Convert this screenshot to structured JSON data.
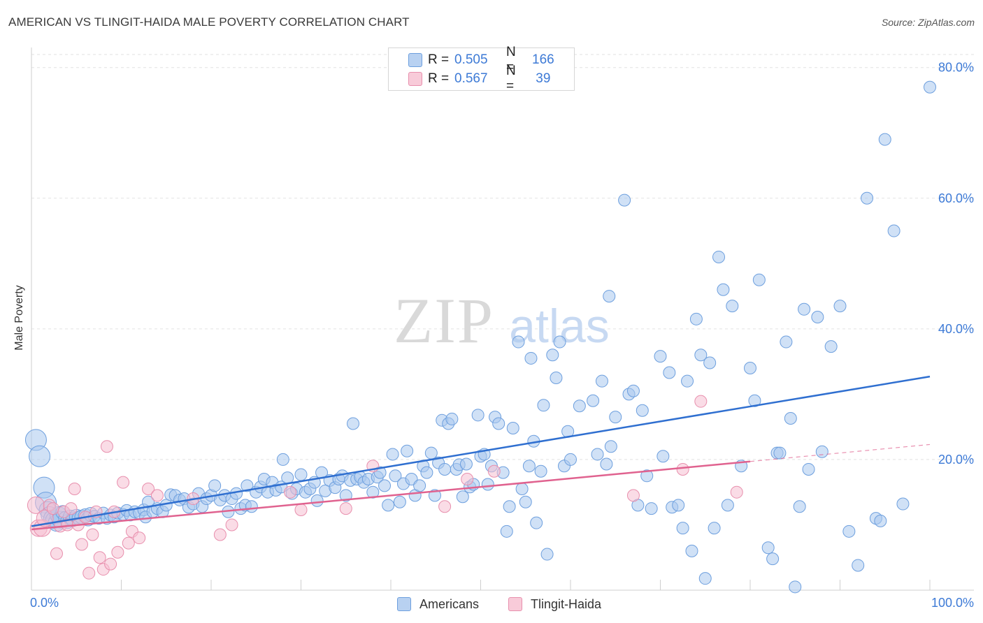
{
  "title": "AMERICAN VS TLINGIT-HAIDA MALE POVERTY CORRELATION CHART",
  "source": "Source: ZipAtlas.com",
  "watermark": {
    "zip": "ZIP",
    "atlas": "atlas"
  },
  "legend_top": {
    "series": [
      {
        "r_label": "R =",
        "r_value": "0.505",
        "n_label": "N =",
        "n_value": "166"
      },
      {
        "r_label": "R =",
        "r_value": "0.567",
        "n_label": "N =",
        "n_value": " 39"
      }
    ]
  },
  "legend_bottom": {
    "americans": "Americans",
    "tlingit": "Tlingit-Haida"
  },
  "colors": {
    "blue_fill": "#a9c8ef",
    "blue_stroke": "#6d9fde",
    "blue_line": "#2f6fd0",
    "pink_fill": "#f6bfd1",
    "pink_stroke": "#e88fad",
    "pink_line": "#e0628f",
    "axis_text": "#3d7ad6",
    "grid": "#e2e2e2"
  },
  "chart_data": {
    "type": "scatter",
    "title": "AMERICAN VS TLINGIT-HAIDA MALE POVERTY CORRELATION CHART",
    "xlabel": "",
    "ylabel": "Male Poverty",
    "xlim": [
      0,
      100
    ],
    "ylim": [
      0,
      82
    ],
    "x_tick_labels": [
      "0.0%",
      "100.0%"
    ],
    "y_ticks": [
      20,
      40,
      60,
      80
    ],
    "y_tick_labels": [
      "20.0%",
      "40.0%",
      "60.0%",
      "80.0%"
    ],
    "x_minor_ticks": [
      10,
      20,
      30,
      40,
      50,
      60,
      70,
      80,
      90,
      100
    ],
    "grid": true,
    "legend_position": "top-center",
    "series": [
      {
        "name": "Americans",
        "r": 0.505,
        "n": 166,
        "trend": {
          "x0": 0,
          "y0": 9.8,
          "x1": 100,
          "y1": 32.7
        },
        "points": [
          [
            0.5,
            23.0
          ],
          [
            0.9,
            20.5
          ],
          [
            1.4,
            15.7
          ],
          [
            1.6,
            13.4
          ],
          [
            1.8,
            12.3
          ],
          [
            2.0,
            11.5
          ],
          [
            2.3,
            11.0
          ],
          [
            2.5,
            10.7
          ],
          [
            2.8,
            10.3
          ],
          [
            3.0,
            11.5
          ],
          [
            3.2,
            10.8
          ],
          [
            3.5,
            11.9
          ],
          [
            3.8,
            11.0
          ],
          [
            4.0,
            10.5
          ],
          [
            4.3,
            11.2
          ],
          [
            4.6,
            10.8
          ],
          [
            5.0,
            11.3
          ],
          [
            5.3,
            11.0
          ],
          [
            5.6,
            11.2
          ],
          [
            6.0,
            11.4
          ],
          [
            6.3,
            10.9
          ],
          [
            6.6,
            11.6
          ],
          [
            7.0,
            11.3
          ],
          [
            7.5,
            11.0
          ],
          [
            8.0,
            11.8
          ],
          [
            8.4,
            11.0
          ],
          [
            8.8,
            11.5
          ],
          [
            9.2,
            11.2
          ],
          [
            9.6,
            11.8
          ],
          [
            10.2,
            11.6
          ],
          [
            10.6,
            12.2
          ],
          [
            11.0,
            11.5
          ],
          [
            11.5,
            12.0
          ],
          [
            12.0,
            11.8
          ],
          [
            12.5,
            12.3
          ],
          [
            12.7,
            11.2
          ],
          [
            13.0,
            13.5
          ],
          [
            13.5,
            12.0
          ],
          [
            14.0,
            12.5
          ],
          [
            14.6,
            12.0
          ],
          [
            15.0,
            13.0
          ],
          [
            15.5,
            14.6
          ],
          [
            16.0,
            14.5
          ],
          [
            16.5,
            13.8
          ],
          [
            17.0,
            14.0
          ],
          [
            17.5,
            12.7
          ],
          [
            18.0,
            13.2
          ],
          [
            18.6,
            14.8
          ],
          [
            19.0,
            12.8
          ],
          [
            19.5,
            14.0
          ],
          [
            20.0,
            14.5
          ],
          [
            20.4,
            16.0
          ],
          [
            21.0,
            13.8
          ],
          [
            21.5,
            14.5
          ],
          [
            21.9,
            12.0
          ],
          [
            22.3,
            14.0
          ],
          [
            22.8,
            14.8
          ],
          [
            23.3,
            12.5
          ],
          [
            23.8,
            13.0
          ],
          [
            24.0,
            16.0
          ],
          [
            24.5,
            12.8
          ],
          [
            25.0,
            15.0
          ],
          [
            25.5,
            15.8
          ],
          [
            25.9,
            17.0
          ],
          [
            26.3,
            15.0
          ],
          [
            26.8,
            16.5
          ],
          [
            27.2,
            15.3
          ],
          [
            27.8,
            15.8
          ],
          [
            28.0,
            20.0
          ],
          [
            28.5,
            17.2
          ],
          [
            29.0,
            14.8
          ],
          [
            29.5,
            15.5
          ],
          [
            30.0,
            17.7
          ],
          [
            30.5,
            15.0
          ],
          [
            31.0,
            15.5
          ],
          [
            31.5,
            16.5
          ],
          [
            31.8,
            13.7
          ],
          [
            32.3,
            18.0
          ],
          [
            32.7,
            15.2
          ],
          [
            33.2,
            16.8
          ],
          [
            33.8,
            15.7
          ],
          [
            34.2,
            17.0
          ],
          [
            34.6,
            17.5
          ],
          [
            35.0,
            14.5
          ],
          [
            35.5,
            16.8
          ],
          [
            35.8,
            25.5
          ],
          [
            36.2,
            17.0
          ],
          [
            36.6,
            17.3
          ],
          [
            37.0,
            16.5
          ],
          [
            37.5,
            17.0
          ],
          [
            38.0,
            15.0
          ],
          [
            38.5,
            17.3
          ],
          [
            38.8,
            18.0
          ],
          [
            39.3,
            16.0
          ],
          [
            39.7,
            13.0
          ],
          [
            40.2,
            20.8
          ],
          [
            40.5,
            17.5
          ],
          [
            41.0,
            13.5
          ],
          [
            41.4,
            16.3
          ],
          [
            41.8,
            21.3
          ],
          [
            42.3,
            17.0
          ],
          [
            42.7,
            14.5
          ],
          [
            43.2,
            16.0
          ],
          [
            43.6,
            19.0
          ],
          [
            44.0,
            18.0
          ],
          [
            44.5,
            21.0
          ],
          [
            44.9,
            14.5
          ],
          [
            45.3,
            19.5
          ],
          [
            45.7,
            26.0
          ],
          [
            46.0,
            18.5
          ],
          [
            46.4,
            25.5
          ],
          [
            46.8,
            26.2
          ],
          [
            47.3,
            18.5
          ],
          [
            47.6,
            19.2
          ],
          [
            48.0,
            14.3
          ],
          [
            48.4,
            19.3
          ],
          [
            48.8,
            15.8
          ],
          [
            49.2,
            16.2
          ],
          [
            49.7,
            26.8
          ],
          [
            50.0,
            20.5
          ],
          [
            50.4,
            20.8
          ],
          [
            50.8,
            16.2
          ],
          [
            51.2,
            19.0
          ],
          [
            51.6,
            26.5
          ],
          [
            52.0,
            25.5
          ],
          [
            52.5,
            18.0
          ],
          [
            52.9,
            9.0
          ],
          [
            53.2,
            12.8
          ],
          [
            53.6,
            24.8
          ],
          [
            54.2,
            38.0
          ],
          [
            54.6,
            15.5
          ],
          [
            55.0,
            13.5
          ],
          [
            55.4,
            19.0
          ],
          [
            55.6,
            35.5
          ],
          [
            55.9,
            22.8
          ],
          [
            56.2,
            10.3
          ],
          [
            56.7,
            18.2
          ],
          [
            57.0,
            28.3
          ],
          [
            57.4,
            5.5
          ],
          [
            58.0,
            36.0
          ],
          [
            58.4,
            32.5
          ],
          [
            58.8,
            38.0
          ],
          [
            59.3,
            19.0
          ],
          [
            59.7,
            24.3
          ],
          [
            60.0,
            20.0
          ],
          [
            61.0,
            28.2
          ],
          [
            62.5,
            29.0
          ],
          [
            63.0,
            20.8
          ],
          [
            63.5,
            32.0
          ],
          [
            64.0,
            19.3
          ],
          [
            64.3,
            45.0
          ],
          [
            64.5,
            22.0
          ],
          [
            65.0,
            26.5
          ],
          [
            66.0,
            59.7
          ],
          [
            66.5,
            30.0
          ],
          [
            67.0,
            30.5
          ],
          [
            67.5,
            13.0
          ],
          [
            68.0,
            27.5
          ],
          [
            68.5,
            17.5
          ],
          [
            69.0,
            12.5
          ],
          [
            70.0,
            35.8
          ],
          [
            70.3,
            20.5
          ],
          [
            71.0,
            33.3
          ],
          [
            71.3,
            12.7
          ],
          [
            72.0,
            13.0
          ],
          [
            72.5,
            9.5
          ],
          [
            73.0,
            32.0
          ],
          [
            73.5,
            6.0
          ],
          [
            74.0,
            41.5
          ],
          [
            74.5,
            36.0
          ],
          [
            75.0,
            1.8
          ],
          [
            75.5,
            34.8
          ],
          [
            76.0,
            9.5
          ],
          [
            76.5,
            51.0
          ],
          [
            77.0,
            46.0
          ],
          [
            77.5,
            13.0
          ],
          [
            78.0,
            43.5
          ],
          [
            79.0,
            19.0
          ],
          [
            80.0,
            34.0
          ],
          [
            80.5,
            29.0
          ],
          [
            81.0,
            47.5
          ],
          [
            82.0,
            6.5
          ],
          [
            82.5,
            4.8
          ],
          [
            83.0,
            21.0
          ],
          [
            83.3,
            21.0
          ],
          [
            84.0,
            38.0
          ],
          [
            84.5,
            26.3
          ],
          [
            85.0,
            0.5
          ],
          [
            85.5,
            12.8
          ],
          [
            86.0,
            43.0
          ],
          [
            86.5,
            18.5
          ],
          [
            87.5,
            41.8
          ],
          [
            88.0,
            21.2
          ],
          [
            89.0,
            37.3
          ],
          [
            90.0,
            43.5
          ],
          [
            91.0,
            9.0
          ],
          [
            92.0,
            3.8
          ],
          [
            93.0,
            60.0
          ],
          [
            94.0,
            11.0
          ],
          [
            94.5,
            10.6
          ],
          [
            95.0,
            69.0
          ],
          [
            96.0,
            55.0
          ],
          [
            97.0,
            13.2
          ],
          [
            100.0,
            77.0
          ]
        ]
      },
      {
        "name": "Tlingit-Haida",
        "r": 0.567,
        "n": 39,
        "trend": {
          "x0": 0,
          "y0": 9.3,
          "x1": 80,
          "y1": 19.7
        },
        "trend_extension": {
          "x0": 80,
          "y0": 19.7,
          "x1": 100,
          "y1": 22.3
        },
        "points": [
          [
            0.5,
            13.0
          ],
          [
            0.8,
            9.5
          ],
          [
            1.2,
            9.5
          ],
          [
            1.5,
            11.0
          ],
          [
            2.0,
            13.0
          ],
          [
            2.4,
            12.5
          ],
          [
            2.8,
            5.6
          ],
          [
            3.2,
            9.8
          ],
          [
            3.6,
            12.0
          ],
          [
            4.0,
            10.0
          ],
          [
            4.4,
            12.5
          ],
          [
            4.8,
            15.5
          ],
          [
            5.2,
            10.0
          ],
          [
            5.6,
            7.0
          ],
          [
            6.0,
            11.2
          ],
          [
            6.4,
            2.6
          ],
          [
            6.8,
            8.5
          ],
          [
            7.2,
            12.0
          ],
          [
            7.6,
            5.0
          ],
          [
            8.0,
            3.2
          ],
          [
            8.4,
            22.0
          ],
          [
            8.8,
            4.0
          ],
          [
            9.2,
            12.0
          ],
          [
            9.6,
            5.8
          ],
          [
            10.2,
            16.5
          ],
          [
            10.8,
            7.2
          ],
          [
            11.2,
            9.0
          ],
          [
            12.0,
            8.0
          ],
          [
            13.0,
            15.5
          ],
          [
            14.0,
            14.5
          ],
          [
            18.0,
            14.0
          ],
          [
            21.0,
            8.5
          ],
          [
            22.3,
            10.0
          ],
          [
            28.8,
            15.0
          ],
          [
            30.0,
            12.3
          ],
          [
            35.0,
            12.5
          ],
          [
            38.0,
            19.0
          ],
          [
            46.0,
            12.8
          ],
          [
            48.5,
            17.0
          ],
          [
            51.5,
            18.2
          ],
          [
            67.0,
            14.5
          ],
          [
            72.5,
            18.5
          ],
          [
            74.5,
            28.9
          ],
          [
            78.5,
            15.0
          ]
        ]
      }
    ]
  }
}
